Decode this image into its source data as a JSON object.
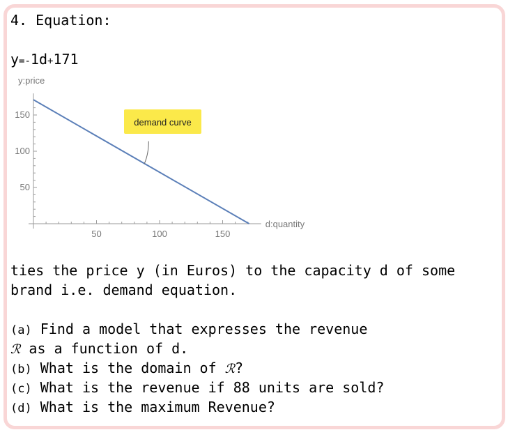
{
  "heading": "4. Equation:",
  "equation": {
    "y": "y",
    "eq": "=",
    "minus": "-",
    "term": "1d",
    "plus": "+",
    "const": "171"
  },
  "chart_data": {
    "type": "line",
    "ylabel": "y:price",
    "xlabel": "d:quantity",
    "x_ticks": [
      50,
      100,
      150
    ],
    "y_ticks": [
      50,
      100,
      150
    ],
    "xlim": [
      0,
      175
    ],
    "ylim": [
      0,
      175
    ],
    "series": [
      {
        "points": [
          [
            0,
            171
          ],
          [
            171,
            0
          ]
        ]
      }
    ],
    "annotation": {
      "text": "demand curve",
      "at": [
        88,
        83
      ]
    },
    "colors": {
      "line": "#5b7fb8",
      "annotation_bg": "#fbe94a"
    }
  },
  "paragraph": {
    "line1": "ties the price y (in Euros) to the capacity d of some",
    "line2": "brand i.e. demand equation."
  },
  "questions": {
    "a_label": "(a)",
    "a_line1": "Find a model that expresses the revenue",
    "a_line2_r": "ℛ",
    "a_line2_rest": "as a function of d.",
    "b_label": "(b)",
    "b_text": "What is the domain of ",
    "b_r": "ℛ",
    "b_q": "?",
    "c_label": "(c)",
    "c_text": "What is the revenue if 88 units are sold?",
    "d_label": "(d)",
    "d_text": "What is the maximum Revenue?"
  }
}
